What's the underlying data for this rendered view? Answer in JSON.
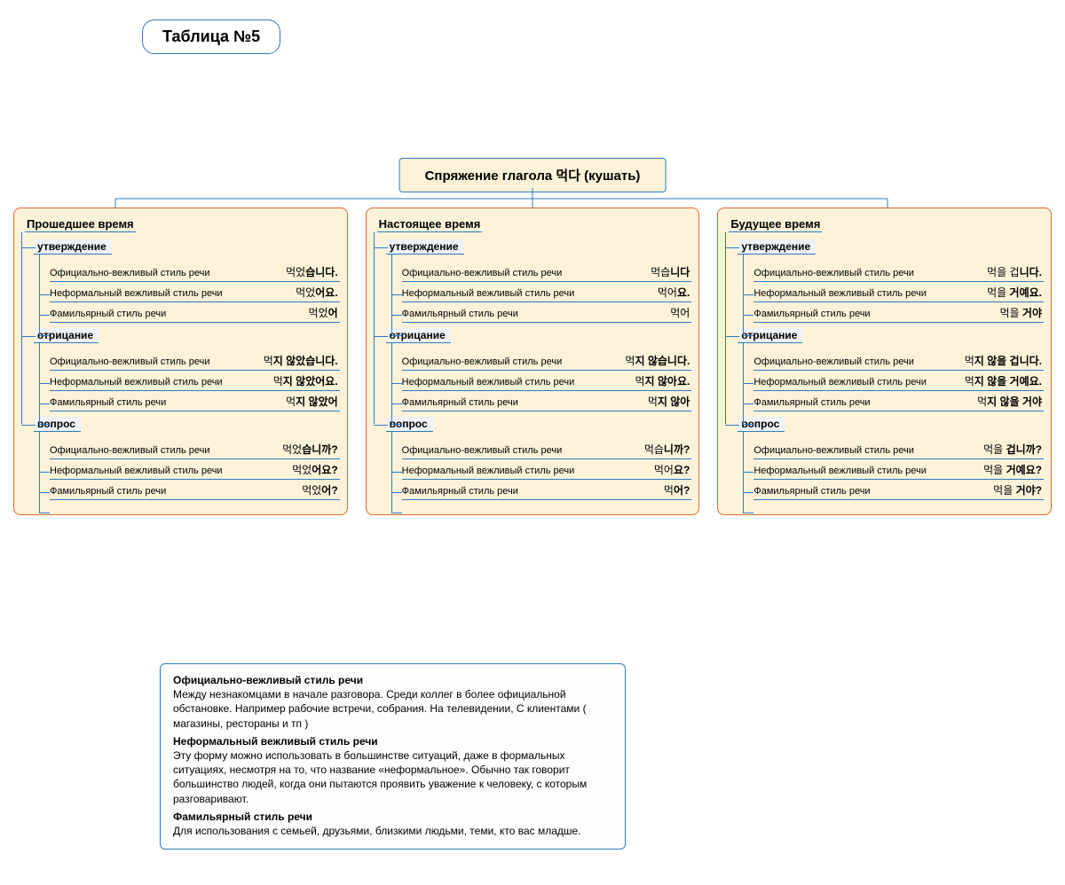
{
  "badge": "Таблица №5",
  "root_title": "Спряжение глагола  먹다 (кушать)",
  "style_labels": {
    "formal": "Официально-вежливый стиль речи",
    "informal": "Неформальный вежливый стиль речи",
    "familiar": "Фамильярный стиль речи"
  },
  "group_labels": {
    "affirm": "утверждение",
    "neg": "отрицание",
    "q": "вопрос"
  },
  "tenses": [
    {
      "title": "Прошедшее время",
      "groups": {
        "affirm": {
          "formal": "먹었<b>습니다.</b>",
          "informal": "먹었<b>어요.</b>",
          "familiar": "먹었<b>어</b>"
        },
        "neg": {
          "formal": "먹<b>지 않았습니다.</b>",
          "informal": "먹<b>지 않았어요.</b>",
          "familiar": "먹<b>지 않았어</b>"
        },
        "q": {
          "formal": "먹었<b>습니까?</b>",
          "informal": "먹었<b>어요?</b>",
          "familiar": "먹었<b>어?</b>"
        }
      }
    },
    {
      "title": "Настоящее время",
      "groups": {
        "affirm": {
          "formal": "먹습<b>니다</b>",
          "informal": "먹어<b>요.</b>",
          "familiar": "먹어"
        },
        "neg": {
          "formal": "먹<b>지 않습니다.</b>",
          "informal": "먹<b>지 않아요.</b>",
          "familiar": "먹<b>지 않아</b>"
        },
        "q": {
          "formal": "먹습<b>니까?</b>",
          "informal": "먹어<b>요?</b>",
          "familiar": "먹<b>어?</b>"
        }
      }
    },
    {
      "title": "Будущее время",
      "groups": {
        "affirm": {
          "formal": "먹을 겁<b>니다.</b>",
          "informal": "먹을 <b>거예요.</b>",
          "familiar": "먹을 <b>거야</b>"
        },
        "neg": {
          "formal": "먹<b>지 않을 겁니다.</b>",
          "informal": "먹<b>지 않을 거예요.</b>",
          "familiar": "먹<b>지 않을 거야</b>"
        },
        "q": {
          "formal": "먹을 <b>겁니까?</b>",
          "informal": "먹을 <b>거예요?</b>",
          "familiar": "먹을 <b>거야?</b>"
        }
      }
    }
  ],
  "legend": {
    "formal_h": "Официально-вежливый стиль речи",
    "formal_t": "Между незнакомцами в начале разговора. Среди коллег в более официальной обстановке.  Например рабочие встречи, собрания. На телевидении, С клиентами            ( магазины, рестораны и тп )",
    "informal_h": "Неформальный вежливый стиль речи",
    "informal_t": "Эту форму можно использовать в большинстве ситуаций, даже в формальных ситуациях, несмотря на то, что название «неформальное». Обычно так говорит большинство людей, когда они пытаются проявить уважение к человеку, с которым разговаривают.",
    "familiar_h": "Фамильярный стиль речи",
    "familiar_t": "Для использования с семьей, друзьями, близкими людьми, теми, кто вас младше."
  },
  "colors": {
    "border_blue": "#2e7bc0",
    "border_orange": "#e06a2c",
    "fill_cream": "#fbf2d8"
  }
}
